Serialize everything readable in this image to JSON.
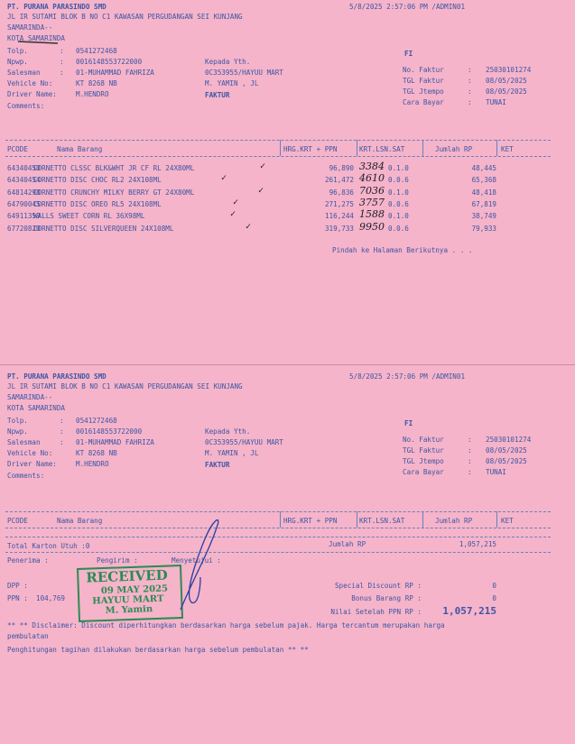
{
  "company": "PT. PURANA PARASINDO SMD",
  "timestamp": "5/8/2025 2:57:06 PM /ADMIN01",
  "address1": "JL IR SUTAMI BLOK B NO C1 KAWASAN PERGUDANGAN SEI KUNJANG",
  "address2": "SAMARINDA--",
  "city": "KOTA SAMARINDA",
  "fields": [
    {
      "label": "Tolp.",
      "sep": ":",
      "value": "0541272468"
    },
    {
      "label": "Npwp.",
      "sep": ":",
      "value": "0016148553722000"
    },
    {
      "label": "Salesman",
      "sep": ":",
      "value": "01-MUHAMMAD FAHRIZA"
    },
    {
      "label": "Vehicle No:",
      "sep": "",
      "value": "KT 8268 NB"
    },
    {
      "label": "Driver Name:",
      "sep": "",
      "value": "M.HENDRO"
    },
    {
      "label": "Comments:",
      "sep": "",
      "value": ""
    }
  ],
  "recipient": {
    "label": "Kepada Yth.",
    "customer": "0C353955/HAYUU MART",
    "street": "M. YAMIN , JL"
  },
  "doc_type": "FAKTUR",
  "fi": "FI",
  "invoice": [
    {
      "label": "No. Faktur",
      "sep": ":",
      "value": "25030101274"
    },
    {
      "label": "TGL Faktur",
      "sep": ":",
      "value": "08/05/2025"
    },
    {
      "label": "TGL Jtempo",
      "sep": ":",
      "value": "08/05/2025"
    },
    {
      "label": "Cara Bayar",
      "sep": ":",
      "value": "TUNAI"
    }
  ],
  "table": {
    "headers": [
      "PCODE",
      "Nama Barang",
      "HRG.KRT + PPN",
      "KRT.LSN.SAT",
      "Jumlah RP",
      "KET"
    ],
    "rows": [
      {
        "pcode": "64340450",
        "name": "CORNETTO CLSSC BLK&WHT JR CF RL 24X80ML",
        "price": "96,890",
        "qty": "0.1.0",
        "amount": "48,445",
        "note": "3384"
      },
      {
        "pcode": "64340454",
        "name": "CORNETTO DISC CHOC RL2 24X108ML",
        "price": "261,472",
        "qty": "0.0.6",
        "amount": "65,368",
        "note": "4610"
      },
      {
        "pcode": "64814298",
        "name": "CORNETTO CRUNCHY MILKY BERRY GT 24X80ML",
        "price": "96,836",
        "qty": "0.1.0",
        "amount": "48,418",
        "note": "7036"
      },
      {
        "pcode": "64790045",
        "name": "CORNETTO DISC OREO RL5 24X108ML",
        "price": "271,275",
        "qty": "0.0.6",
        "amount": "67,819",
        "note": "3757"
      },
      {
        "pcode": "64911359",
        "name": "WALLS SWEET CORN RL 36X98ML",
        "price": "116,244",
        "qty": "0.1.0",
        "amount": "38,749",
        "note": "1588"
      },
      {
        "pcode": "67720820",
        "name": "CORNETTO DISC SILVERQUEEN 24X108ML",
        "price": "319,733",
        "qty": "0.0.6",
        "amount": "79,933",
        "note": "9950"
      }
    ]
  },
  "next_page": "Pindah ke Halaman Berikutnya . . .",
  "totals": {
    "total_karton": "Total Karton Utuh :0",
    "jumlah_label": "Jumlah RP",
    "jumlah": "1,057,215",
    "penerima": "Penerima :",
    "pengirim": "Pengirim :",
    "menyetujui": "Menyetujui :",
    "dpp_label": "DPP :",
    "ppn_label": "PPN :",
    "ppn": "104,769",
    "special_label": "Special Discount RP :",
    "special": "0",
    "bonus_label": "Bonus Barang RP :",
    "bonus": "0",
    "nilai_label": "Nilai Setelah PPN RP :",
    "nilai": "1,057,215"
  },
  "disclaimer1": "** ** Disclaimer: Discount diperhitungkan berdasarkan harga sebelum pajak. Harga tercantum merupakan harga",
  "disclaimer2": "pembulatan",
  "disclaimer3": "Penghitungan tagihan dilakukan berdasarkan harga sebelum pembulatan ** **",
  "stamp": {
    "title": "RECEIVED",
    "date": "09 MAY 2025",
    "name": "HAYUU MART",
    "person": "M. Yamin"
  }
}
